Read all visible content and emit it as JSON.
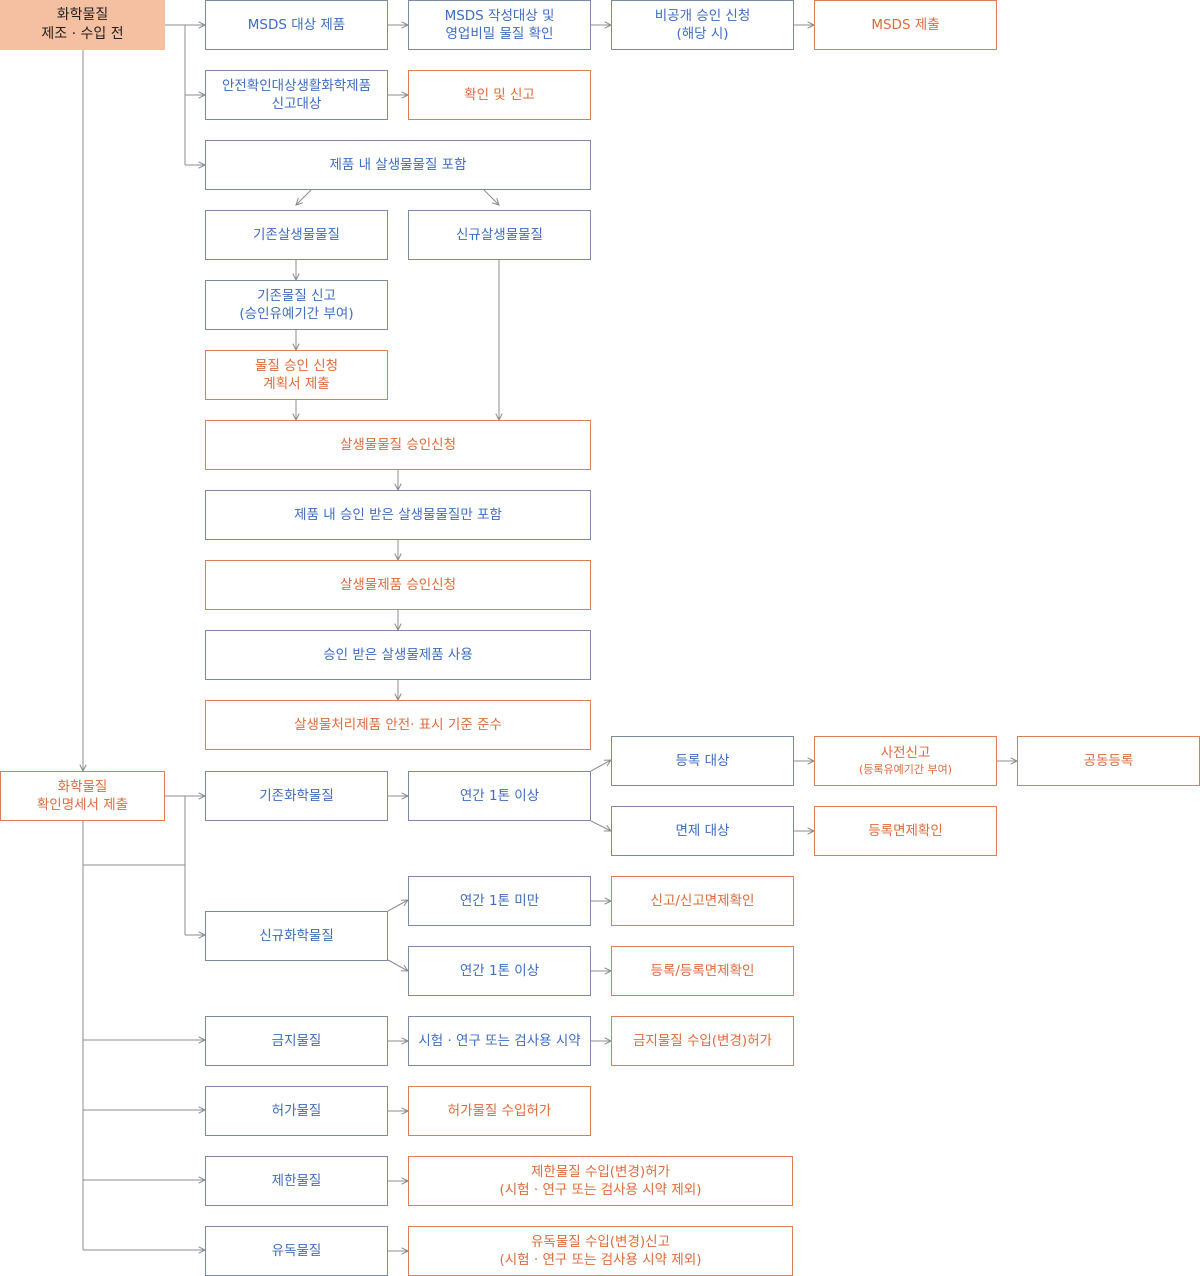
{
  "start_top": [
    "화학물질",
    "제조 · 수입 전"
  ],
  "start_bottom": [
    "화학물질",
    "확인명세서 제출"
  ],
  "msds": {
    "target": "MSDS 대상 제품",
    "check": [
      "MSDS 작성대상 및",
      "영업비밀 물질 확인"
    ],
    "nondisclosure": [
      "비공개 승인 신청",
      "(해당 시)"
    ],
    "submit": "MSDS 제출"
  },
  "safety": {
    "target": [
      "안전확인대상생활화학제품",
      "신고대상"
    ],
    "report": "확인 및 신고"
  },
  "biocide": {
    "contains": "제품 내 살생물물질 포함",
    "existing": "기존살생물물질",
    "new": "신규살생물물질",
    "existing_report": [
      "기존물질 신고",
      "(승인유예기간 부여)"
    ],
    "plan": [
      "물질 승인 신청",
      "계획서 제출"
    ],
    "substance_approval": "살생물물질 승인신청",
    "approved_only": "제품 내 승인 받은 살생물물질만 포함",
    "product_approval": "살생물제품 승인신청",
    "use_approved": "승인 받은 살생물제품 사용",
    "treated_article": "살생물처리제품 안전· 표시 기준 준수"
  },
  "existing_chem": {
    "label": "기존화학물질",
    "over1t": "연간 1톤 이상",
    "reg_target": "등록 대상",
    "pre_report": "사전신고",
    "pre_report_note": "(등록유예기간 부여)",
    "joint_reg": "공동등록",
    "exempt_target": "면제 대상",
    "exempt_confirm": "등록면제확인"
  },
  "new_chem": {
    "label": "신규화학물질",
    "under1t": "연간 1톤 미만",
    "under_result": "신고/신고면제확인",
    "over1t": "연간 1톤 이상",
    "over_result": "등록/등록면제확인"
  },
  "prohibited": {
    "label": "금지물질",
    "research": "시험 · 연구 또는 검사용 시약",
    "permit": "금지물질 수입(변경)허가"
  },
  "permitted": {
    "label": "허가물질",
    "permit": "허가물질 수입허가"
  },
  "restricted": {
    "label": "제한물질",
    "permit": [
      "제한물질 수입(변경)허가",
      "(시험 · 연구 또는 검사용 시약 제외)"
    ]
  },
  "toxic": {
    "label": "유독물질",
    "report": [
      "유독물질 수입(변경)신고",
      "(시험 · 연구 또는 검사용 시약 제외)"
    ]
  },
  "colors": {
    "blue_text": "#3d6cc3",
    "orange_text": "#e06a3a",
    "start_fill": "#f5c0a2",
    "line": "#8c8c8c"
  }
}
